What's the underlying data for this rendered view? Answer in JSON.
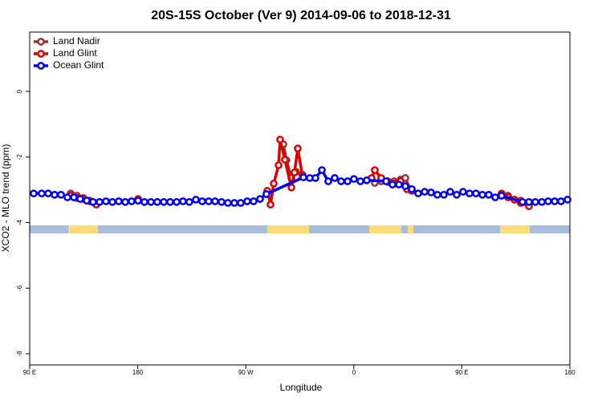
{
  "chart_data": {
    "type": "line",
    "title": "20S-15S October (Ver 9)   2014-09-06 to 2018-12-31",
    "x_label": "Longitude",
    "y_label": "XCO2 - MLO trend (ppm)",
    "xlim": [
      90,
      540
    ],
    "xticks": [
      {
        "value": 90,
        "label": "90 E"
      },
      {
        "value": 180,
        "label": "180"
      },
      {
        "value": 270,
        "label": "90 W"
      },
      {
        "value": 360,
        "label": "0"
      },
      {
        "value": 450,
        "label": "90 E"
      },
      {
        "value": 540,
        "label": "180"
      }
    ],
    "ylim": [
      -8.34,
      1.81
    ],
    "yticks": [
      0,
      -2,
      -4,
      -6,
      -8
    ],
    "grid": false,
    "legend": "upper left",
    "series": [
      {
        "name": "Land Nadir",
        "color": "#993333",
        "x": [
          124.1,
          129.4,
          134.8,
          140.1,
          null,
          301.3,
          303.9,
          308,
          311.9,
          317.3,
          null,
          377.5,
          382.8,
          388.2,
          393.5,
          398.9,
          402.9,
          406.9,
          null,
          483.1,
          488.5,
          493.8,
          499.1
        ],
        "values": [
          -3.11,
          -3.18,
          -3.25,
          -3.33,
          null,
          -1.61,
          -2.1,
          -2.64,
          -2.45,
          -2.54,
          null,
          -2.79,
          -2.74,
          -2.76,
          -2.74,
          -2.69,
          -2.64,
          -2.98,
          null,
          -3.11,
          -3.18,
          -3.3,
          -3.33
        ]
      },
      {
        "name": "Land Glint",
        "color": "#dd0000",
        "x": [
          124.1,
          129.4,
          134.8,
          140.1,
          145.5,
          null,
          180.3,
          null,
          287.9,
          290.6,
          293.3,
          297.3,
          298.6,
          302.6,
          308,
          310.6,
          313.3,
          317.3,
          null,
          374.8,
          377.5,
          382.8,
          388.2,
          393.5,
          398.9,
          404.2,
          408.3,
          null,
          483.1,
          488.5,
          493.8,
          499.1,
          505.9
        ],
        "values": [
          -3.18,
          -3.25,
          -3.28,
          -3.35,
          -3.45,
          null,
          -3.28,
          null,
          -3.03,
          -3.45,
          -2.81,
          -2.25,
          -1.47,
          -2.08,
          -2.93,
          -2.47,
          -1.74,
          -2.59,
          null,
          -2.64,
          -2.4,
          -2.64,
          -2.74,
          -2.81,
          -2.74,
          -2.98,
          -3.03,
          null,
          -3.13,
          -3.23,
          -3.3,
          -3.4,
          -3.5
        ]
      },
      {
        "name": "Ocean Glint",
        "color": "#0000ee",
        "x": [
          93.3,
          100,
          105.4,
          110.7,
          116.1,
          121.4,
          126.8,
          132.1,
          137.5,
          142.8,
          148.2,
          153.5,
          158.9,
          164.2,
          169.6,
          174.9,
          180.3,
          185.6,
          191,
          196.3,
          201.7,
          207,
          212.4,
          217.7,
          223,
          228.4,
          233.7,
          239.1,
          244.4,
          249.8,
          255.1,
          260.5,
          265.8,
          271.2,
          276.5,
          281.9,
          287.2,
          318,
          323.3,
          328,
          333.4,
          338.7,
          344.1,
          349.4,
          354.8,
          360.1,
          365.5,
          370.8,
          386.9,
          392.2,
          397.6,
          402.9,
          408.3,
          413.6,
          419,
          424.3,
          429.6,
          435,
          440.3,
          445.7,
          451,
          456.4,
          461.7,
          467.1,
          472.4,
          477.8,
          483.1,
          500.5,
          505.9,
          511.2,
          516.6,
          521.9,
          527.3,
          532.6,
          538
        ],
        "values": [
          -3.11,
          -3.11,
          -3.11,
          -3.15,
          -3.15,
          -3.23,
          -3.23,
          -3.28,
          -3.33,
          -3.37,
          -3.37,
          -3.35,
          -3.37,
          -3.35,
          -3.37,
          -3.35,
          -3.33,
          -3.37,
          -3.37,
          -3.37,
          -3.37,
          -3.37,
          -3.37,
          -3.35,
          -3.37,
          -3.3,
          -3.35,
          -3.35,
          -3.35,
          -3.37,
          -3.4,
          -3.4,
          -3.4,
          -3.35,
          -3.35,
          -3.28,
          -3.13,
          -2.62,
          -2.64,
          -2.64,
          -2.4,
          -2.74,
          -2.64,
          -2.74,
          -2.74,
          -2.67,
          -2.74,
          -2.71,
          -2.74,
          -2.84,
          -2.84,
          -2.89,
          -2.98,
          -3.11,
          -3.06,
          -3.08,
          -3.15,
          -3.15,
          -3.06,
          -3.15,
          -3.06,
          -3.11,
          -3.11,
          -3.15,
          -3.15,
          -3.23,
          -3.18,
          -3.37,
          -3.37,
          -3.37,
          -3.37,
          -3.35,
          -3.35,
          -3.35,
          -3.3
        ]
      }
    ]
  }
}
